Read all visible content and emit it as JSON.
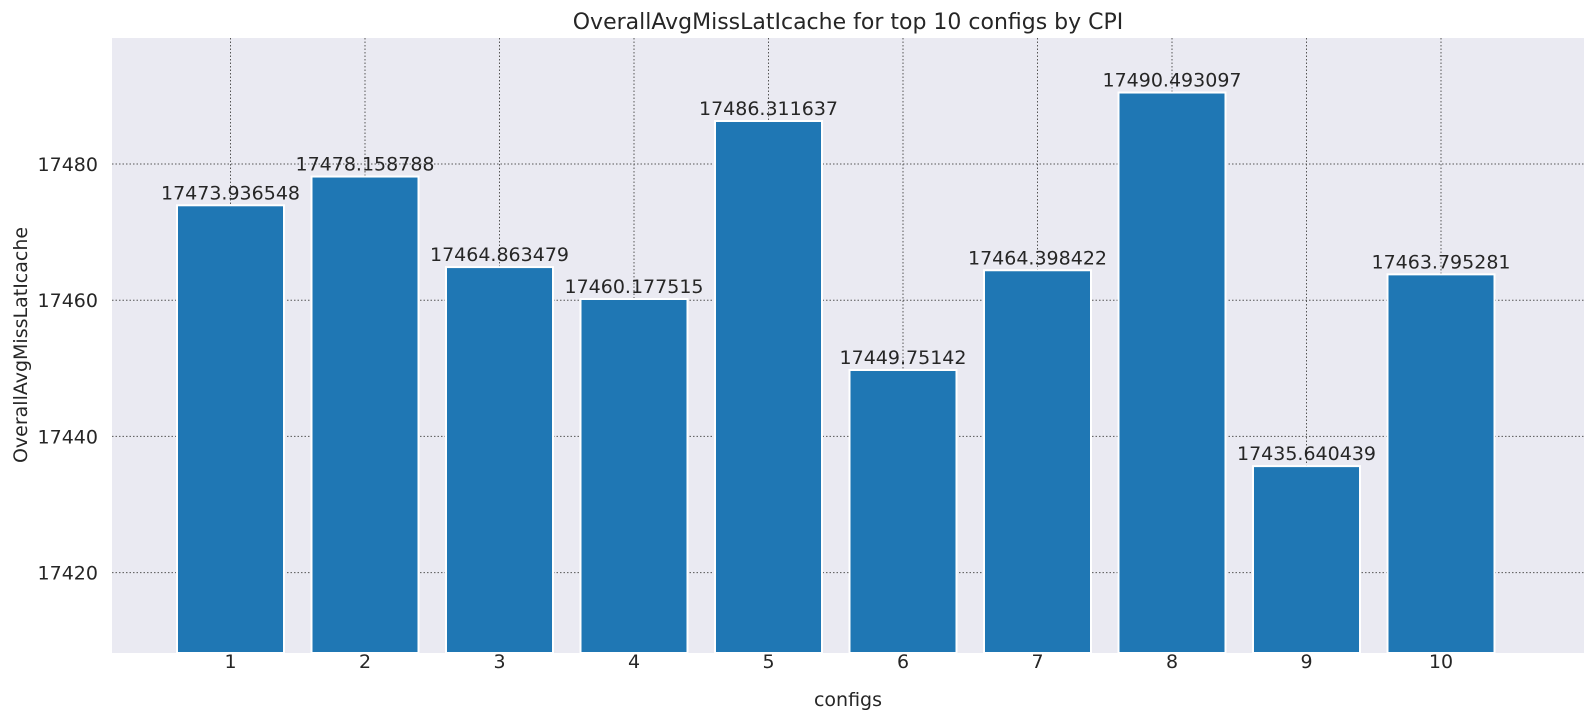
{
  "chart_data": {
    "type": "bar",
    "title": "OverallAvgMissLatIcache for top 10 configs by CPI",
    "xlabel": "configs",
    "ylabel": "OverallAvgMissLatIcache",
    "categories": [
      "1",
      "2",
      "3",
      "4",
      "5",
      "6",
      "7",
      "8",
      "9",
      "10"
    ],
    "values": [
      17473.936548,
      17478.158788,
      17464.863479,
      17460.177515,
      17486.311637,
      17449.75142,
      17464.398422,
      17490.493097,
      17435.640439,
      17463.795281
    ],
    "data_labels": [
      "17473.936548",
      "17478.158788",
      "17464.863479",
      "17460.177515",
      "17486.311637",
      "17449.75142",
      "17464.398422",
      "17490.493097",
      "17435.640439",
      "17463.795281"
    ],
    "yticks": [
      17420,
      17440,
      17460,
      17480
    ],
    "ylim": [
      17408.2,
      17498.5
    ],
    "grid": true,
    "colors": {
      "bar": "#1f77b4",
      "background": "#eaeaf2",
      "grid": "#555555",
      "text": "#262626"
    }
  }
}
